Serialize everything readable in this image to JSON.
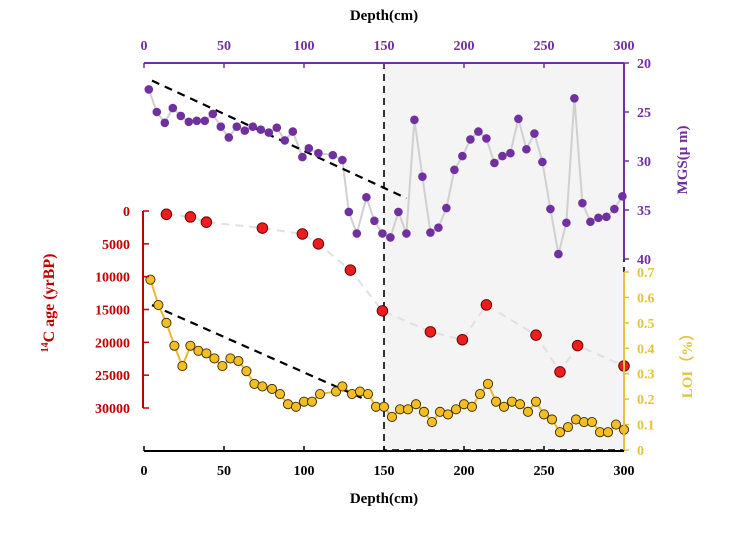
{
  "colors": {
    "mgs": "#7030a0",
    "mgs_line": "#d0d0d0",
    "age": "#c00000",
    "age_point": "#ee1c1c",
    "age_line": "#e0e0e0",
    "loi": "#e6c23a",
    "loi_point": "#f2be24",
    "loi_line": "#f0b828",
    "shade": "#f4f4f4",
    "axis": "#000000"
  },
  "chart_data": {
    "type": "scatter",
    "top_xlabel": "Depth(cm)",
    "bottom_xlabel": "Depth(cm)",
    "xlim": [
      0,
      300
    ],
    "xticks": [
      0,
      50,
      100,
      150,
      200,
      250,
      300
    ],
    "highlight_region": {
      "x_from": 150,
      "x_to": 300,
      "style": "gray shaded, dashed border"
    },
    "series": [
      {
        "name": "MGS",
        "axis_label": "MGS(μ m)",
        "axis": "right-top",
        "ylim": [
          20,
          40
        ],
        "inverted": true,
        "yticks": [
          20,
          25,
          30,
          35,
          40
        ],
        "x": [
          3,
          8,
          13,
          18,
          23,
          28,
          33,
          38,
          43,
          48,
          53,
          58,
          63,
          68,
          73,
          78,
          83,
          88,
          93,
          99,
          103,
          109,
          118,
          124,
          128,
          133,
          139,
          144,
          149,
          154,
          159,
          164,
          169,
          174,
          179,
          184,
          189,
          194,
          199,
          204,
          209,
          214,
          219,
          224,
          229,
          234,
          239,
          244,
          249,
          254,
          259,
          264,
          269,
          274,
          279,
          284,
          289,
          294,
          299
        ],
        "y": [
          22.7,
          25.0,
          26.1,
          24.6,
          25.4,
          26.0,
          25.9,
          25.9,
          25.2,
          26.5,
          27.6,
          26.5,
          26.9,
          26.5,
          26.8,
          27.1,
          26.6,
          27.9,
          27.0,
          29.6,
          28.7,
          29.2,
          29.4,
          29.9,
          35.2,
          37.4,
          33.7,
          36.1,
          37.4,
          37.8,
          35.2,
          37.4,
          25.8,
          31.6,
          37.3,
          36.8,
          34.8,
          30.9,
          29.5,
          27.8,
          27.0,
          27.7,
          30.2,
          29.5,
          29.2,
          25.7,
          28.8,
          27.2,
          30.1,
          34.9,
          39.5,
          36.3,
          23.6,
          34.3,
          36.2,
          35.8,
          35.7,
          34.9,
          33.6
        ],
        "trend": {
          "from": [
            5,
            21.8
          ],
          "to": [
            164,
            33.8
          ]
        }
      },
      {
        "name": "14C age",
        "axis_label_sup": "14",
        "axis_label_rest": "C age (yrBP)",
        "axis": "left",
        "ylim": [
          0,
          30000
        ],
        "inverted": true,
        "yticks": [
          0,
          5000,
          10000,
          15000,
          20000,
          25000,
          30000
        ],
        "x": [
          14,
          29,
          39,
          74,
          99,
          109,
          129,
          149,
          179,
          199,
          214,
          245,
          260,
          271,
          300
        ],
        "y": [
          500,
          900,
          1700,
          2600,
          3500,
          5000,
          9000,
          15200,
          18400,
          19600,
          14300,
          18900,
          24500,
          20500,
          23600
        ]
      },
      {
        "name": "LOI",
        "axis_label": "LOI（%）",
        "axis": "right-bottom",
        "ylim": [
          0,
          0.7
        ],
        "yticks": [
          0,
          0.1,
          0.2,
          0.3,
          0.4,
          0.5,
          0.6,
          0.7
        ],
        "x": [
          4,
          9,
          14,
          19,
          24,
          29,
          34,
          39,
          44,
          49,
          54,
          59,
          64,
          69,
          74,
          80,
          85,
          90,
          95,
          100,
          105,
          110,
          120,
          124,
          130,
          135,
          140,
          145,
          150,
          155,
          160,
          165,
          170,
          175,
          180,
          185,
          190,
          195,
          200,
          205,
          210,
          215,
          220,
          225,
          230,
          235,
          240,
          245,
          250,
          255,
          260,
          265,
          270,
          275,
          280,
          285,
          290,
          295,
          300
        ],
        "y": [
          0.67,
          0.57,
          0.5,
          0.41,
          0.33,
          0.41,
          0.39,
          0.38,
          0.36,
          0.33,
          0.36,
          0.35,
          0.31,
          0.26,
          0.25,
          0.24,
          0.22,
          0.18,
          0.17,
          0.19,
          0.19,
          0.22,
          0.23,
          0.25,
          0.22,
          0.23,
          0.22,
          0.17,
          0.17,
          0.13,
          0.16,
          0.16,
          0.18,
          0.15,
          0.11,
          0.15,
          0.14,
          0.16,
          0.18,
          0.17,
          0.22,
          0.26,
          0.19,
          0.17,
          0.19,
          0.18,
          0.15,
          0.19,
          0.14,
          0.12,
          0.07,
          0.09,
          0.12,
          0.11,
          0.11,
          0.07,
          0.07,
          0.1,
          0.08
        ],
        "trend": {
          "from": [
            5,
            0.57
          ],
          "to": [
            136,
            0.205
          ]
        }
      }
    ]
  }
}
